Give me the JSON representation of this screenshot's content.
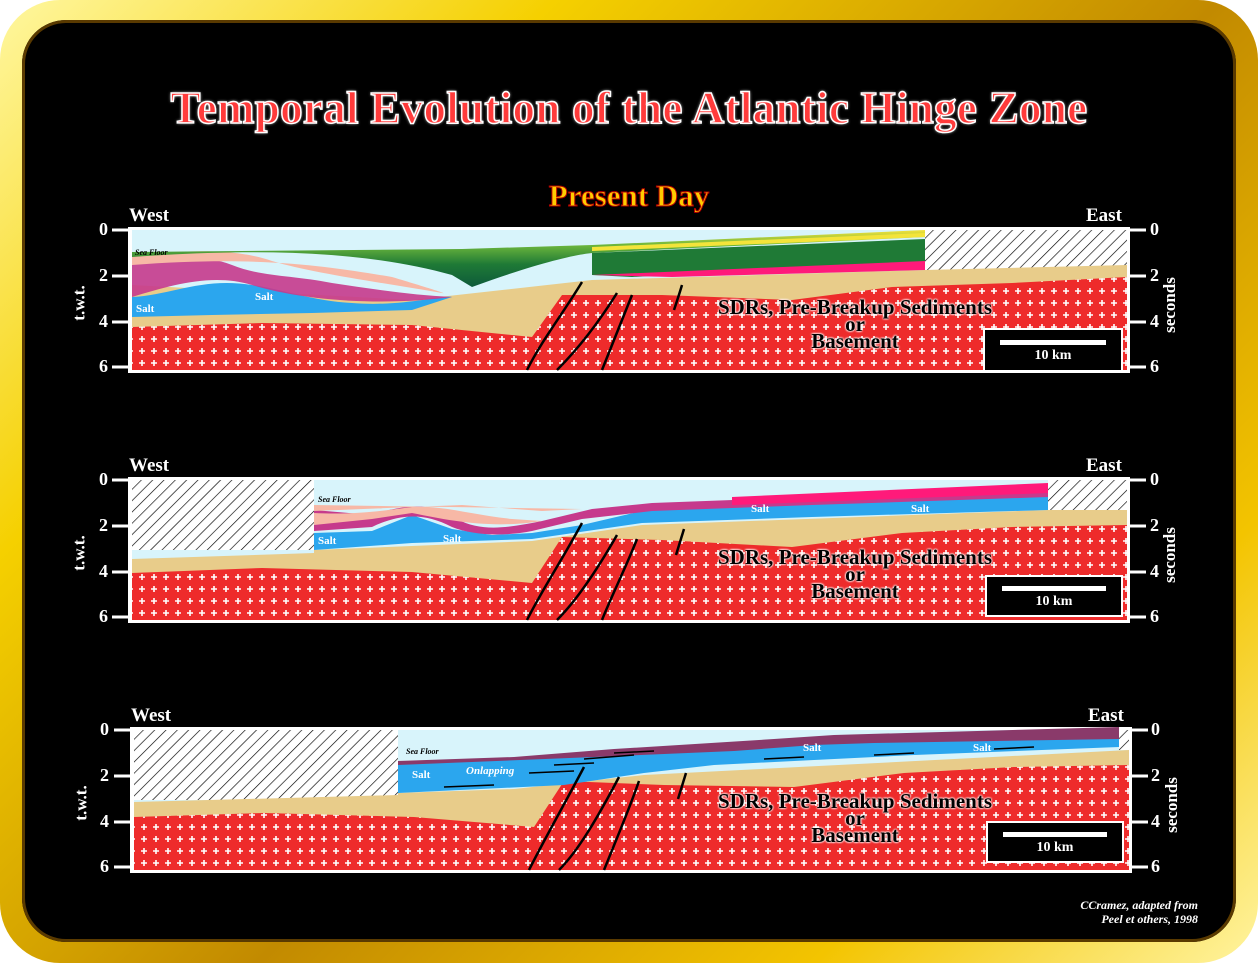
{
  "title": "Temporal Evolution of the Atlantic Hinge Zone",
  "subtitle": "Present Day",
  "panels": [
    {
      "west": "West",
      "east": "East",
      "y_left_label": "t.w.t.",
      "y_right_label": "seconds",
      "ticks": [
        "0",
        "2",
        "4",
        "6"
      ],
      "sea_floor": "Sea Floor",
      "salt_labels": [
        "Salt",
        "Salt"
      ],
      "basement_text": [
        "SDRs, Pre-Breakup Sediments",
        "or",
        "Basement"
      ],
      "scale_bar": "10 km"
    },
    {
      "west": "West",
      "east": "East",
      "y_left_label": "t.w.t.",
      "y_right_label": "seconds",
      "ticks": [
        "0",
        "2",
        "4",
        "6"
      ],
      "sea_floor": "Sea Floor",
      "salt_labels": [
        "Salt",
        "Salt",
        "Salt",
        "Salt"
      ],
      "basement_text": [
        "SDRs, Pre-Breakup Sediments",
        "or",
        "Basement"
      ],
      "scale_bar": "10 km"
    },
    {
      "west": "West",
      "east": "East",
      "y_left_label": "t.w.t.",
      "y_right_label": "seconds",
      "ticks": [
        "0",
        "2",
        "4",
        "6"
      ],
      "sea_floor": "Sea Floor",
      "salt_labels": [
        "Salt",
        "Salt",
        "Salt"
      ],
      "onlapping": "Onlapping",
      "basement_text": [
        "SDRs, Pre-Breakup Sediments",
        "or",
        "Basement"
      ],
      "scale_bar": "10 km"
    }
  ],
  "credit": [
    "CCramez, adapted from",
    "Peel et others, 1998"
  ],
  "colors": {
    "basement": "#ee2b2b",
    "sediment": "#e8cc8a",
    "salt": "#2ba6ee",
    "sea": "#d8f4fb",
    "pink": "#ff1a7a",
    "green": "#2e8a3a"
  }
}
